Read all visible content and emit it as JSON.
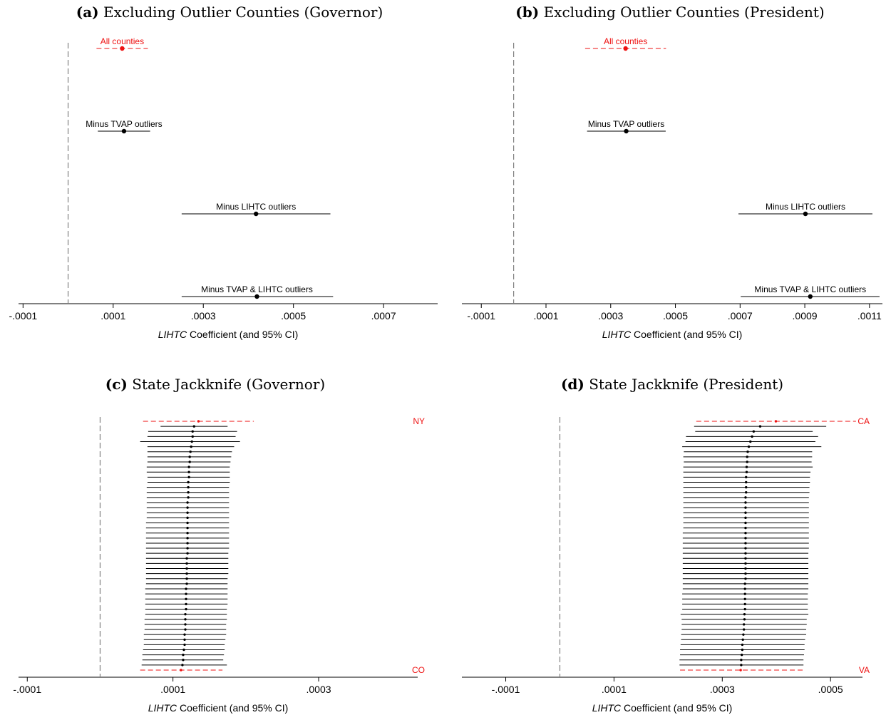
{
  "colors": {
    "highlight": "#ee1111",
    "ink": "#000000",
    "zero_line": "#808080"
  },
  "axis_suffix": " Coefficient (and 95% CI)",
  "panels": [
    {
      "id": "a",
      "letter": "(a)",
      "title": "Excluding Outlier Counties (Governor)",
      "xlabel_italic": "LIHTC",
      "chart_data": {
        "type": "coefplot",
        "xlim": [
          -0.00011,
          0.00082
        ],
        "ticks": [
          -0.0001,
          0.0001,
          0.0003,
          0.0005,
          0.0007
        ],
        "tick_labels": [
          "-.0001",
          ".0001",
          ".0003",
          ".0005",
          ".0007"
        ],
        "reference_line": 0,
        "rows": [
          {
            "label": "All counties",
            "estimate": 0.00012,
            "ci": [
              6.3e-05,
              0.000177
            ],
            "highlight": true
          },
          {
            "label": "Minus TVAP outliers",
            "estimate": 0.000124,
            "ci": [
              6.6e-05,
              0.000182
            ],
            "highlight": false
          },
          {
            "label": "Minus LIHTC outliers",
            "estimate": 0.000417,
            "ci": [
              0.000252,
              0.000582
            ],
            "highlight": false
          },
          {
            "label": "Minus TVAP & LIHTC outliers",
            "estimate": 0.000419,
            "ci": [
              0.000252,
              0.000588
            ],
            "highlight": false
          }
        ]
      }
    },
    {
      "id": "b",
      "letter": "(b)",
      "title": "Excluding Outlier Counties (President)",
      "xlabel_italic": "LIHTC",
      "chart_data": {
        "type": "coefplot",
        "xlim": [
          -0.00016,
          0.00114
        ],
        "ticks": [
          -0.0001,
          0.0001,
          0.0003,
          0.0005,
          0.0007,
          0.0009,
          0.0011
        ],
        "tick_labels": [
          "-.0001",
          ".0001",
          ".0003",
          ".0005",
          ".0007",
          ".0009",
          ".0011"
        ],
        "reference_line": 0,
        "rows": [
          {
            "label": "All counties",
            "estimate": 0.000346,
            "ci": [
              0.000221,
              0.000471
            ],
            "highlight": true
          },
          {
            "label": "Minus TVAP outliers",
            "estimate": 0.000348,
            "ci": [
              0.000227,
              0.00047
            ],
            "highlight": false
          },
          {
            "label": "Minus LIHTC outliers",
            "estimate": 0.000902,
            "ci": [
              0.000695,
              0.001109
            ],
            "highlight": false
          },
          {
            "label": "Minus TVAP & LIHTC outliers",
            "estimate": 0.000917,
            "ci": [
              0.000702,
              0.001131
            ],
            "highlight": false
          }
        ]
      }
    },
    {
      "id": "c",
      "letter": "(c)",
      "title": "State Jackknife (Governor)",
      "xlabel_italic": "LIHTC",
      "chart_data": {
        "type": "coefplot",
        "xlim": [
          -0.000112,
          0.000436
        ],
        "ticks": [
          -0.0001,
          0.0001,
          0.0003
        ],
        "tick_labels": [
          "-.0001",
          ".0001",
          ".0003"
        ],
        "reference_line": 0,
        "rows": [
          {
            "label": "NY",
            "estimate": 0.000135,
            "ci": [
              5.9e-05,
              0.000211
            ],
            "highlight": true
          },
          {
            "estimate": 0.000129,
            "ci": [
              8.3e-05,
              0.000175
            ]
          },
          {
            "estimate": 0.000127,
            "ci": [
              6.6e-05,
              0.000188
            ]
          },
          {
            "estimate": 0.000127,
            "ci": [
              6.5e-05,
              0.000186
            ]
          },
          {
            "estimate": 0.000126,
            "ci": [
              5.5e-05,
              0.000192
            ]
          },
          {
            "estimate": 0.000125,
            "ci": [
              6.5e-05,
              0.000184
            ]
          },
          {
            "estimate": 0.000124,
            "ci": [
              6.5e-05,
              0.000181
            ]
          },
          {
            "estimate": 0.000123,
            "ci": [
              6.5e-05,
              0.00018
            ]
          },
          {
            "estimate": 0.000123,
            "ci": [
              6.5e-05,
              0.000179
            ]
          },
          {
            "estimate": 0.000122,
            "ci": [
              6.4e-05,
              0.000178
            ]
          },
          {
            "estimate": 0.000122,
            "ci": [
              6.4e-05,
              0.000178
            ]
          },
          {
            "estimate": 0.000122,
            "ci": [
              6.5e-05,
              0.000178
            ]
          },
          {
            "estimate": 0.000121,
            "ci": [
              6.5e-05,
              0.000178
            ]
          },
          {
            "estimate": 0.000121,
            "ci": [
              6.4e-05,
              0.000177
            ]
          },
          {
            "estimate": 0.000121,
            "ci": [
              6.4e-05,
              0.000177
            ]
          },
          {
            "estimate": 0.000121,
            "ci": [
              6.4e-05,
              0.000177
            ]
          },
          {
            "estimate": 0.00012,
            "ci": [
              6.4e-05,
              0.000177
            ]
          },
          {
            "estimate": 0.00012,
            "ci": [
              6.4e-05,
              0.000177
            ]
          },
          {
            "estimate": 0.00012,
            "ci": [
              6.4e-05,
              0.000177
            ]
          },
          {
            "estimate": 0.00012,
            "ci": [
              6.4e-05,
              0.000177
            ]
          },
          {
            "estimate": 0.00012,
            "ci": [
              6.3e-05,
              0.000177
            ]
          },
          {
            "estimate": 0.00012,
            "ci": [
              6.3e-05,
              0.000177
            ]
          },
          {
            "estimate": 0.00012,
            "ci": [
              6.3e-05,
              0.000177
            ]
          },
          {
            "estimate": 0.00012,
            "ci": [
              6.3e-05,
              0.000177
            ]
          },
          {
            "estimate": 0.00012,
            "ci": [
              6.3e-05,
              0.000177
            ]
          },
          {
            "estimate": 0.00012,
            "ci": [
              6.3e-05,
              0.000177
            ]
          },
          {
            "estimate": 0.00012,
            "ci": [
              6.3e-05,
              0.000176
            ]
          },
          {
            "estimate": 0.000119,
            "ci": [
              6.3e-05,
              0.000176
            ]
          },
          {
            "estimate": 0.000119,
            "ci": [
              6.3e-05,
              0.000176
            ]
          },
          {
            "estimate": 0.000119,
            "ci": [
              6.3e-05,
              0.000176
            ]
          },
          {
            "estimate": 0.000119,
            "ci": [
              6.3e-05,
              0.000176
            ]
          },
          {
            "estimate": 0.000119,
            "ci": [
              6.3e-05,
              0.000175
            ]
          },
          {
            "estimate": 0.000119,
            "ci": [
              6.3e-05,
              0.000175
            ]
          },
          {
            "estimate": 0.000118,
            "ci": [
              6.2e-05,
              0.000175
            ]
          },
          {
            "estimate": 0.000118,
            "ci": [
              6.2e-05,
              0.000175
            ]
          },
          {
            "estimate": 0.000118,
            "ci": [
              6.2e-05,
              0.000175
            ]
          },
          {
            "estimate": 0.000118,
            "ci": [
              6.2e-05,
              0.000175
            ]
          },
          {
            "estimate": 0.000118,
            "ci": [
              6.2e-05,
              0.000174
            ]
          },
          {
            "estimate": 0.000117,
            "ci": [
              6.2e-05,
              0.000174
            ]
          },
          {
            "estimate": 0.000117,
            "ci": [
              6.1e-05,
              0.000174
            ]
          },
          {
            "estimate": 0.000117,
            "ci": [
              6.1e-05,
              0.000173
            ]
          },
          {
            "estimate": 0.000117,
            "ci": [
              6.1e-05,
              0.000173
            ]
          },
          {
            "estimate": 0.000116,
            "ci": [
              6e-05,
              0.000173
            ]
          },
          {
            "estimate": 0.000116,
            "ci": [
              6e-05,
              0.000172
            ]
          },
          {
            "estimate": 0.000116,
            "ci": [
              6e-05,
              0.000171
            ]
          },
          {
            "estimate": 0.000115,
            "ci": [
              5.9e-05,
              0.000171
            ]
          },
          {
            "estimate": 0.000114,
            "ci": [
              5.8e-05,
              0.00017
            ]
          },
          {
            "estimate": 0.000114,
            "ci": [
              5.8e-05,
              0.000169
            ]
          },
          {
            "estimate": 0.000113,
            "ci": [
              5.7e-05,
              0.000174
            ]
          },
          {
            "label": "CO",
            "estimate": 0.000111,
            "ci": [
              5.5e-05,
              0.000168
            ],
            "highlight": true
          }
        ]
      }
    },
    {
      "id": "d",
      "letter": "(d)",
      "title": "State Jackknife (President)",
      "xlabel_italic": "LIHTC",
      "chart_data": {
        "type": "coefplot",
        "xlim": [
          -0.000181,
          0.000559
        ],
        "ticks": [
          -0.0001,
          0.0001,
          0.0003,
          0.0005
        ],
        "tick_labels": [
          "-.0001",
          ".0001",
          ".0003",
          ".0005"
        ],
        "reference_line": 0,
        "rows": [
          {
            "label": "CA",
            "estimate": 0.000399,
            "ci": [
              0.000252,
              0.000547
            ],
            "highlight": true
          },
          {
            "estimate": 0.00037,
            "ci": [
              0.000248,
              0.000492
            ]
          },
          {
            "estimate": 0.000358,
            "ci": [
              0.00025,
              0.000467
            ]
          },
          {
            "estimate": 0.000355,
            "ci": [
              0.000233,
              0.000477
            ]
          },
          {
            "estimate": 0.000352,
            "ci": [
              0.000232,
              0.000472
            ]
          },
          {
            "estimate": 0.000349,
            "ci": [
              0.000226,
              0.000483
            ]
          },
          {
            "estimate": 0.000347,
            "ci": [
              0.000229,
              0.000466
            ]
          },
          {
            "estimate": 0.000346,
            "ci": [
              0.000228,
              0.000466
            ]
          },
          {
            "estimate": 0.000346,
            "ci": [
              0.000229,
              0.000465
            ]
          },
          {
            "estimate": 0.000345,
            "ci": [
              0.000228,
              0.000467
            ]
          },
          {
            "estimate": 0.000345,
            "ci": [
              0.000228,
              0.000463
            ]
          },
          {
            "estimate": 0.000344,
            "ci": [
              0.000228,
              0.000462
            ]
          },
          {
            "estimate": 0.000344,
            "ci": [
              0.000228,
              0.000462
            ]
          },
          {
            "estimate": 0.000344,
            "ci": [
              0.000228,
              0.000461
            ]
          },
          {
            "estimate": 0.000344,
            "ci": [
              0.000228,
              0.000461
            ]
          },
          {
            "estimate": 0.000343,
            "ci": [
              0.000228,
              0.00046
            ]
          },
          {
            "estimate": 0.000343,
            "ci": [
              0.000228,
              0.00046
            ]
          },
          {
            "estimate": 0.000343,
            "ci": [
              0.000228,
              0.00046
            ]
          },
          {
            "estimate": 0.000343,
            "ci": [
              0.000228,
              0.00046
            ]
          },
          {
            "estimate": 0.000343,
            "ci": [
              0.000228,
              0.00046
            ]
          },
          {
            "estimate": 0.000343,
            "ci": [
              0.000228,
              0.00046
            ]
          },
          {
            "estimate": 0.000343,
            "ci": [
              0.000228,
              0.00046
            ]
          },
          {
            "estimate": 0.000343,
            "ci": [
              0.000227,
              0.00046
            ]
          },
          {
            "estimate": 0.000343,
            "ci": [
              0.000227,
              0.00046
            ]
          },
          {
            "estimate": 0.000343,
            "ci": [
              0.000227,
              0.00046
            ]
          },
          {
            "estimate": 0.000343,
            "ci": [
              0.000227,
              0.00046
            ]
          },
          {
            "estimate": 0.000343,
            "ci": [
              0.000227,
              0.000459
            ]
          },
          {
            "estimate": 0.000343,
            "ci": [
              0.000227,
              0.000459
            ]
          },
          {
            "estimate": 0.000343,
            "ci": [
              0.000227,
              0.000459
            ]
          },
          {
            "estimate": 0.000343,
            "ci": [
              0.000227,
              0.000459
            ]
          },
          {
            "estimate": 0.000343,
            "ci": [
              0.000227,
              0.000459
            ]
          },
          {
            "estimate": 0.000343,
            "ci": [
              0.000227,
              0.000459
            ]
          },
          {
            "estimate": 0.000342,
            "ci": [
              0.000227,
              0.000459
            ]
          },
          {
            "estimate": 0.000342,
            "ci": [
              0.000227,
              0.000459
            ]
          },
          {
            "estimate": 0.000342,
            "ci": [
              0.000226,
              0.000458
            ]
          },
          {
            "estimate": 0.000342,
            "ci": [
              0.000226,
              0.000458
            ]
          },
          {
            "estimate": 0.000342,
            "ci": [
              0.000226,
              0.000458
            ]
          },
          {
            "estimate": 0.000342,
            "ci": [
              0.000226,
              0.000458
            ]
          },
          {
            "estimate": 0.000341,
            "ci": [
              0.000223,
              0.000459
            ]
          },
          {
            "estimate": 0.000341,
            "ci": [
              0.000225,
              0.000456
            ]
          },
          {
            "estimate": 0.00034,
            "ci": [
              0.000225,
              0.000456
            ]
          },
          {
            "estimate": 0.00034,
            "ci": [
              0.000225,
              0.000455
            ]
          },
          {
            "estimate": 0.000339,
            "ci": [
              0.000224,
              0.000455
            ]
          },
          {
            "estimate": 0.000338,
            "ci": [
              0.000224,
              0.000453
            ]
          },
          {
            "estimate": 0.000337,
            "ci": [
              0.000223,
              0.000452
            ]
          },
          {
            "estimate": 0.000337,
            "ci": [
              0.000222,
              0.000452
            ]
          },
          {
            "estimate": 0.000336,
            "ci": [
              0.000222,
              0.000451
            ]
          },
          {
            "estimate": 0.000335,
            "ci": [
              0.000221,
              0.00045
            ]
          },
          {
            "estimate": 0.000335,
            "ci": [
              0.000221,
              0.00045
            ]
          },
          {
            "label": "VA",
            "estimate": 0.000334,
            "ci": [
              0.000222,
              0.00045
            ],
            "highlight": true
          }
        ]
      }
    }
  ]
}
